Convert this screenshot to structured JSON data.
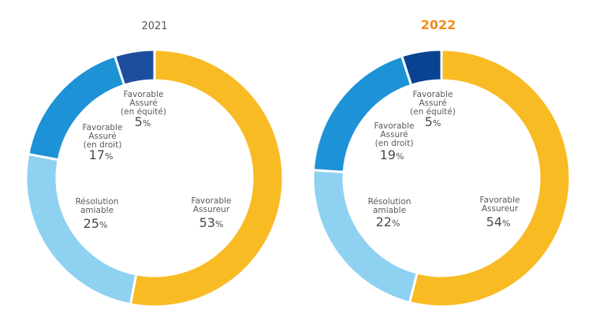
{
  "colors": {
    "favorable_assureur": "#F9BB24",
    "resolution_amiable": "#8FD1F1",
    "favorable_assure_droit": "#1E92D6",
    "favorable_assure_equite_2021": "#1D4E9E",
    "favorable_assure_equite_2022": "#0A4392",
    "title_2021": "#555555",
    "title_2022": "#EE8E1C",
    "text": "#555555"
  },
  "chart_data": [
    {
      "type": "pie",
      "title": "2021",
      "title_style": "plain",
      "slices": [
        {
          "key": "favorable_assureur",
          "label_lines": [
            "Favorable",
            "Assureur"
          ],
          "value": 53,
          "value_text": "53",
          "unit": "%"
        },
        {
          "key": "resolution_amiable",
          "label_lines": [
            "Résolution",
            "amiable"
          ],
          "value": 25,
          "value_text": "25",
          "unit": "%"
        },
        {
          "key": "favorable_assure_droit",
          "label_lines": [
            "Favorable",
            "Assuré",
            "(en droit)"
          ],
          "value": 17,
          "value_text": "17",
          "unit": "%"
        },
        {
          "key": "favorable_assure_equite",
          "label_lines": [
            "Favorable",
            "Assuré",
            "(en équité)"
          ],
          "value": 5,
          "value_text": "5",
          "unit": "%"
        }
      ]
    },
    {
      "type": "pie",
      "title": "2022",
      "title_style": "bold",
      "slices": [
        {
          "key": "favorable_assureur",
          "label_lines": [
            "Favorable",
            "Assureur"
          ],
          "value": 54,
          "value_text": "54",
          "unit": "%"
        },
        {
          "key": "resolution_amiable",
          "label_lines": [
            "Résolution",
            "amiable"
          ],
          "value": 22,
          "value_text": "22",
          "unit": "%"
        },
        {
          "key": "favorable_assure_droit",
          "label_lines": [
            "Favorable",
            "Assuré",
            "(en droit)"
          ],
          "value": 19,
          "value_text": "19",
          "unit": "%"
        },
        {
          "key": "favorable_assure_equite",
          "label_lines": [
            "Favorable",
            "Assuré",
            "(en équité)"
          ],
          "value": 5,
          "value_text": "5",
          "unit": "%"
        }
      ]
    }
  ]
}
